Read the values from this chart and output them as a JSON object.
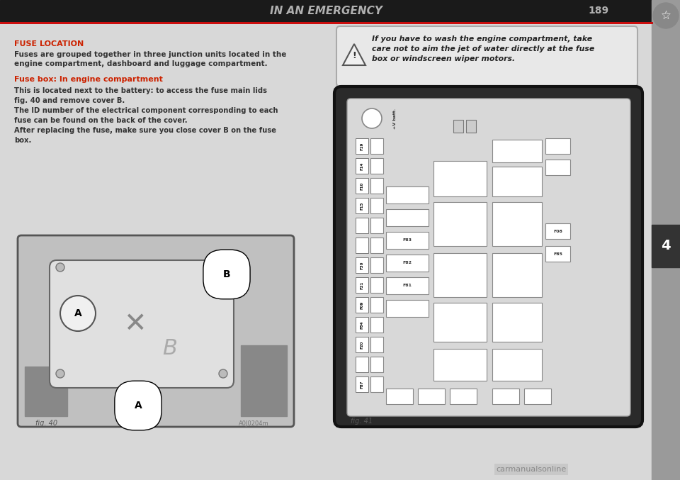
{
  "title": "IN AN EMERGENCY",
  "page_number": "189",
  "bg_color": "#c8c8c8",
  "page_bg": "#d4d4d4",
  "content_bg": "#e8e8e8",
  "header_bg": "#1a1a1a",
  "header_text_color": "#b0b0b0",
  "sidebar_color": "#a0a0a0",
  "left_section_heading": "FUSE LOCATION",
  "left_section_body": "Fuses are grouped together in three junction units located in the\nengine compartment, dashboard and luggage compartment.",
  "left_section_subheading": "Fuse box: In engine compartment",
  "left_section_body2": "This is located next to the battery: to access the fuse main lids\nfig. 40 and remove cover B.\nThe ID number of the electrical component corresponding to each\nfuse can be found on the back of the cover.\nAfter replacing the fuse, make sure you close cover B on the fuse\nbox.",
  "warning_text": "If you have to wash the engine compartment, take\ncare not to aim the jet of water directly at the fuse\nbox or windscreen wiper motors.",
  "fig_left_caption": "fig. 40",
  "fig_right_caption": "fig. 41",
  "watermark": "carmanualsonline"
}
